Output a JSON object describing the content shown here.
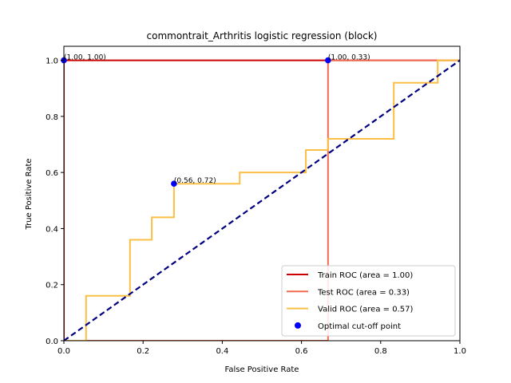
{
  "chart_data": {
    "type": "line",
    "title": "commontrait_Arthritis logistic regression (block)",
    "xlabel": "False Positive Rate",
    "ylabel": "True Positive Rate",
    "xlim": [
      0,
      1
    ],
    "ylim": [
      0,
      1.05
    ],
    "x_ticks": [
      "0.0",
      "0.2",
      "0.4",
      "0.6",
      "0.8",
      "1.0"
    ],
    "y_ticks": [
      "0.0",
      "0.2",
      "0.4",
      "0.6",
      "0.8",
      "1.0"
    ],
    "x_tick_values": [
      0,
      0.2,
      0.4,
      0.6,
      0.8,
      1.0
    ],
    "y_tick_values": [
      0,
      0.2,
      0.4,
      0.6,
      0.8,
      1.0
    ],
    "grid": false,
    "legend_position": "lower-right",
    "series": [
      {
        "name": "Train ROC (area = 1.00)",
        "color": "#cc0000",
        "x": [
          0,
          0,
          1
        ],
        "y": [
          0,
          1,
          1
        ]
      },
      {
        "name": "Test ROC (area = 0.33)",
        "color": "#f26b50",
        "x": [
          0,
          0.667,
          0.667,
          1
        ],
        "y": [
          0,
          0,
          1,
          1
        ]
      },
      {
        "name": "Valid ROC (area = 0.57)",
        "color": "#fbbf45",
        "x": [
          0,
          0.056,
          0.056,
          0.167,
          0.167,
          0.222,
          0.222,
          0.278,
          0.278,
          0.444,
          0.444,
          0.611,
          0.611,
          0.667,
          0.667,
          0.833,
          0.833,
          0.944,
          0.944,
          1.0
        ],
        "y": [
          0,
          0,
          0.16,
          0.16,
          0.36,
          0.36,
          0.44,
          0.44,
          0.56,
          0.56,
          0.6,
          0.6,
          0.68,
          0.68,
          0.72,
          0.72,
          0.92,
          0.92,
          1.0,
          1.0
        ]
      }
    ],
    "diagonal": {
      "color": "#000080",
      "x": [
        0,
        1
      ],
      "y": [
        0,
        1
      ]
    },
    "optimal_points": {
      "name": "Optimal cut-off point",
      "color": "#0000ff",
      "points": [
        {
          "x": 0.0,
          "y": 1.0,
          "label": "(1.00, 1.00)"
        },
        {
          "x": 0.667,
          "y": 1.0,
          "label": "(1.00, 0.33)"
        },
        {
          "x": 0.278,
          "y": 0.56,
          "label": "(0.56, 0.72)"
        }
      ]
    }
  }
}
